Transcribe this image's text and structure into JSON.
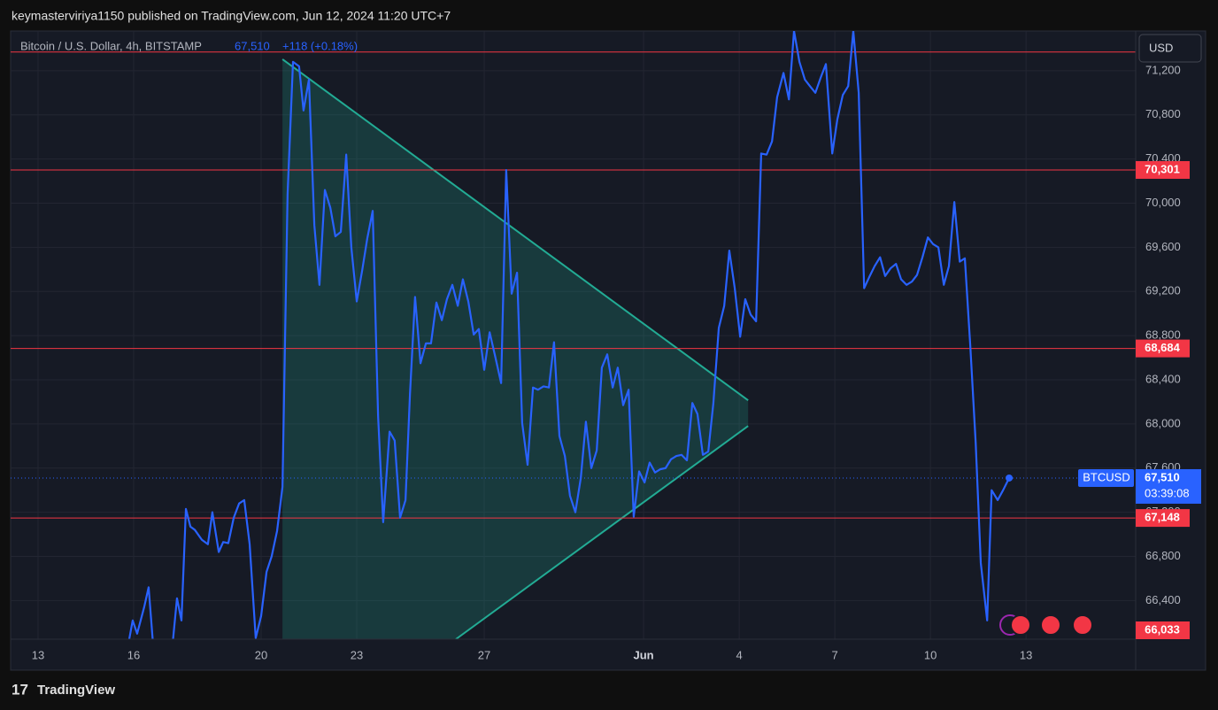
{
  "page": {
    "publisher": "keymasterviriya1150 published on TradingView.com, Jun 12, 2024 11:20 UTC+7",
    "currency": "USD",
    "brand": "TradingView"
  },
  "header": {
    "title": "Bitcoin / U.S. Dollar, 4h, BITSTAMP",
    "price": "67,510",
    "change": "+118 (+0.18%)"
  },
  "chart_data": {
    "type": "line",
    "x": [
      15.83,
      15.97,
      16.11,
      16.33,
      16.47,
      16.61,
      17.22,
      17.36,
      17.5,
      17.64,
      17.78,
      17.92,
      18.14,
      18.33,
      18.47,
      18.67,
      18.81,
      18.97,
      19.14,
      19.31,
      19.47,
      19.64,
      19.83,
      20.0,
      20.17,
      20.33,
      20.5,
      20.67,
      20.83,
      21.0,
      21.19,
      21.33,
      21.5,
      21.67,
      21.83,
      22.0,
      22.17,
      22.33,
      22.5,
      22.67,
      22.83,
      23.0,
      23.17,
      23.33,
      23.5,
      23.67,
      23.83,
      24.03,
      24.19,
      24.36,
      24.53,
      24.67,
      24.83,
      25.0,
      25.17,
      25.33,
      25.5,
      25.67,
      25.83,
      26.0,
      26.17,
      26.33,
      26.5,
      26.67,
      26.83,
      27.0,
      27.17,
      27.33,
      27.53,
      27.69,
      27.86,
      28.03,
      28.19,
      28.36,
      28.53,
      28.69,
      28.86,
      29.03,
      29.19,
      29.36,
      29.53,
      29.69,
      29.86,
      30.03,
      30.19,
      30.36,
      30.53,
      30.69,
      30.86,
      31.03,
      31.19,
      31.36,
      31.53,
      31.69,
      31.86,
      32.03,
      32.19,
      32.36,
      32.53,
      32.69,
      32.86,
      33.03,
      33.19,
      33.36,
      33.53,
      33.69,
      33.86,
      34.03,
      34.19,
      34.36,
      34.53,
      34.69,
      34.86,
      35.03,
      35.19,
      35.36,
      35.53,
      35.69,
      35.86,
      36.03,
      36.19,
      36.39,
      36.56,
      36.72,
      36.89,
      37.06,
      37.22,
      37.39,
      37.56,
      37.72,
      37.92,
      38.08,
      38.25,
      38.42,
      38.58,
      38.75,
      38.92,
      39.08,
      39.25,
      39.42,
      39.58,
      39.75,
      39.92,
      40.08,
      40.25,
      40.42,
      40.58,
      40.75,
      40.92,
      41.08,
      41.25,
      41.42,
      41.58,
      41.75,
      41.92,
      42.08,
      42.25,
      42.42,
      42.58,
      42.78,
      42.92,
      43.11,
      43.28,
      43.47
    ],
    "series": [
      {
        "name": "BTCUSD",
        "color": "#2962ff",
        "values": [
          66000,
          66220,
          66100,
          66340,
          66520,
          66000,
          66000,
          66420,
          66220,
          67230,
          67070,
          67040,
          66950,
          66910,
          67200,
          66840,
          66930,
          66920,
          67150,
          67280,
          67310,
          66910,
          66060,
          66260,
          66660,
          66800,
          67030,
          67430,
          70080,
          71280,
          71240,
          70840,
          71120,
          69800,
          69260,
          70120,
          69960,
          69700,
          69740,
          70440,
          69600,
          69110,
          69390,
          69680,
          69930,
          68070,
          67110,
          67930,
          67850,
          67150,
          67310,
          68270,
          69150,
          68550,
          68730,
          68730,
          69100,
          68940,
          69130,
          69260,
          69070,
          69310,
          69110,
          68810,
          68860,
          68490,
          68830,
          68630,
          68370,
          70300,
          69180,
          69370,
          68010,
          67630,
          68330,
          68310,
          68340,
          68330,
          68740,
          67890,
          67710,
          67350,
          67200,
          67510,
          68020,
          67600,
          67760,
          68510,
          68630,
          68330,
          68510,
          68170,
          68310,
          67160,
          67570,
          67470,
          67650,
          67560,
          67590,
          67600,
          67680,
          67710,
          67720,
          67670,
          68190,
          68090,
          67720,
          67750,
          68190,
          68870,
          69070,
          69570,
          69230,
          68790,
          69130,
          68990,
          68930,
          70450,
          70440,
          70560,
          70960,
          71180,
          70940,
          71560,
          71280,
          71120,
          71060,
          71000,
          71140,
          71260,
          70450,
          70760,
          70980,
          71060,
          71560,
          71000,
          69230,
          69330,
          69430,
          69510,
          69340,
          69410,
          69450,
          69310,
          69260,
          69290,
          69350,
          69510,
          69690,
          69630,
          69600,
          69260,
          69430,
          70010,
          69470,
          69500,
          68710,
          67830,
          66740,
          66220,
          67400,
          67310,
          67400,
          67510
        ]
      }
    ],
    "xlim": [
      12.14,
      47.44
    ],
    "xticks": [
      13,
      16,
      20,
      23,
      27,
      {
        "value": 32,
        "label": "Jun"
      },
      {
        "value": 35,
        "label": "4"
      },
      {
        "value": 38,
        "label": "7"
      },
      {
        "value": 41,
        "label": "10"
      },
      {
        "value": 44,
        "label": "13"
      }
    ],
    "ylim": [
      66050,
      71560
    ],
    "yticks": [
      {
        "value": 66400,
        "label": "66,400"
      },
      {
        "value": 66800,
        "label": "66,800"
      },
      {
        "value": 67200,
        "label": "67,200"
      },
      {
        "value": 67600,
        "label": "67,600"
      },
      {
        "value": 68000,
        "label": "68,000"
      },
      {
        "value": 68400,
        "label": "68,400"
      },
      {
        "value": 68800,
        "label": "68,800"
      },
      {
        "value": 69200,
        "label": "69,200"
      },
      {
        "value": 69600,
        "label": "69,600"
      },
      {
        "value": 70000,
        "label": "70,000"
      },
      {
        "value": 70400,
        "label": "70,400"
      },
      {
        "value": 70800,
        "label": "70,800"
      },
      {
        "value": 71200,
        "label": "71,200"
      }
    ],
    "grid": true,
    "levels": [
      {
        "value": 71370
      },
      {
        "value": 70301,
        "label": "70,301"
      },
      {
        "value": 68684,
        "label": "68,684"
      },
      {
        "value": 67148,
        "label": "67,148"
      },
      {
        "value": 66033,
        "label": "66,033"
      }
    ],
    "level_color": "#f23645",
    "triangle": {
      "color": "#22ab94",
      "points": [
        [
          20.67,
          71304
        ],
        [
          35.28,
          68214
        ],
        [
          35.28,
          67981
        ],
        [
          26.11,
          66050
        ],
        [
          20.67,
          66050
        ]
      ]
    },
    "last_price": {
      "symbol": "BTCUSD",
      "value": 67510,
      "label": "67,510",
      "countdown": "03:39:08",
      "color": "#2962ff"
    }
  }
}
